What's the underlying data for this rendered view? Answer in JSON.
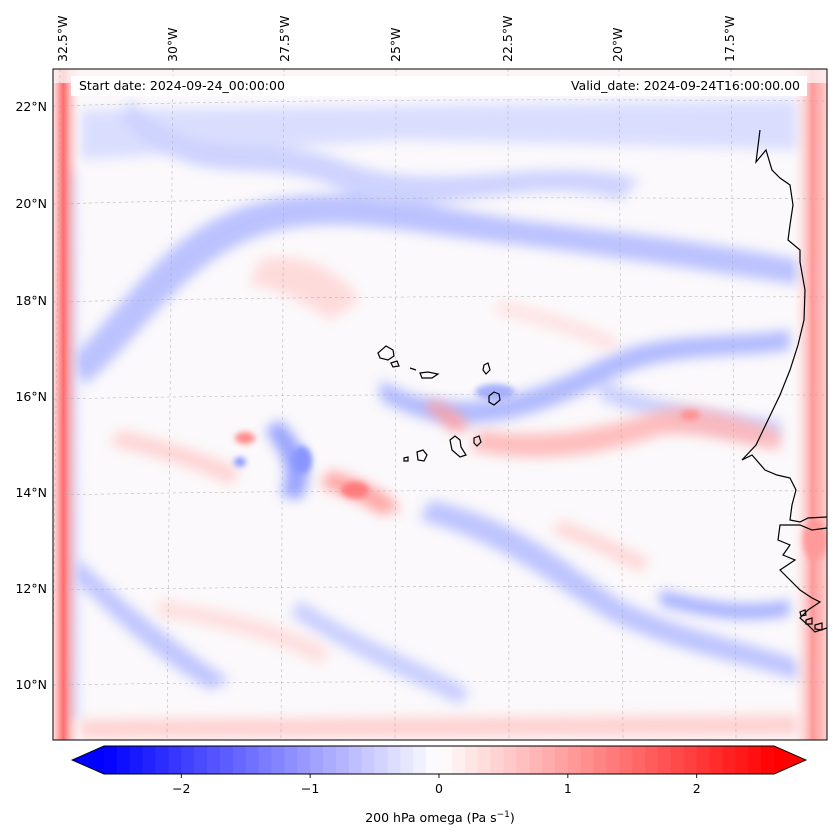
{
  "map": {
    "start_date_label": "Start date: 2024-09-24_00:00:00",
    "valid_date_label": "Valid_date: 2024-09-24T16:00:00.00",
    "lon_ticks": [
      "32.5°W",
      "30°W",
      "27.5°W",
      "25°W",
      "22.5°W",
      "20°W",
      "17.5°W"
    ],
    "lat_ticks": [
      "22°N",
      "20°N",
      "18°N",
      "16°N",
      "14°N",
      "12°N",
      "10°N"
    ],
    "colormap": "bwr",
    "colors": {
      "negative": "#0000ff",
      "zero": "#ffffff",
      "positive": "#ff0000",
      "coastline": "#000000"
    }
  },
  "colorbar": {
    "label": "200 hPa omega (Pa s",
    "label_sup": "−1",
    "label_close": ")",
    "tick_labels": [
      "−2",
      "−1",
      "0",
      "1",
      "2"
    ],
    "tick_values": [
      -2,
      -1,
      0,
      1,
      2
    ],
    "range": [
      -2.6,
      2.6
    ],
    "extend": "both"
  }
}
